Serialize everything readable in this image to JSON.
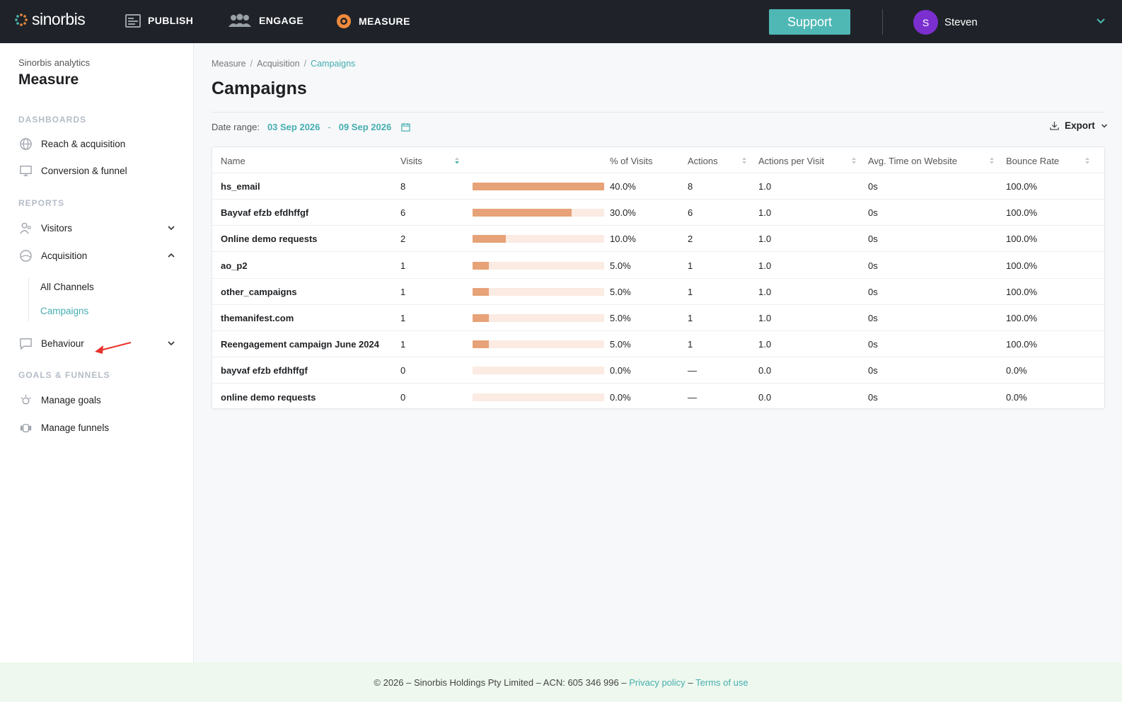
{
  "app": {
    "logo_text": "sinorbis",
    "nav": [
      {
        "label": "PUBLISH",
        "icon": "publish-icon"
      },
      {
        "label": "ENGAGE",
        "icon": "engage-icon"
      },
      {
        "label": "MEASURE",
        "icon": "measure-icon",
        "active": true
      }
    ],
    "support_label": "Support",
    "user": {
      "initial": "S",
      "name": "Steven"
    },
    "accent": "#45aeb0",
    "avatar_color": "#7b2fcf"
  },
  "sidebar": {
    "subtitle": "Sinorbis analytics",
    "title": "Measure",
    "sections": {
      "dashboards": "DASHBOARDS",
      "reports": "REPORTS",
      "goals": "GOALS & FUNNELS"
    },
    "dashboards": [
      {
        "label": "Reach & acquisition",
        "icon": "globe-icon"
      },
      {
        "label": "Conversion & funnel",
        "icon": "monitor-icon"
      }
    ],
    "reports": {
      "visitors": "Visitors",
      "acquisition": "Acquisition",
      "acq_children": [
        "All Channels",
        "Campaigns"
      ],
      "behaviour": "Behaviour"
    },
    "goals": [
      {
        "label": "Manage goals",
        "icon": "goal-icon"
      },
      {
        "label": "Manage funnels",
        "icon": "funnel-icon"
      }
    ]
  },
  "main": {
    "breadcrumb": [
      "Measure",
      "Acquisition",
      "Campaigns"
    ],
    "title": "Campaigns",
    "date_range_label": "Date range:",
    "date_from": "03 Sep 2026",
    "date_sep": "-",
    "date_to": "09 Sep 2026",
    "export_label": "Export"
  },
  "table": {
    "columns": [
      "Name",
      "Visits",
      "% of Visits",
      "Actions",
      "Actions per Visit",
      "Avg. Time on Website",
      "Bounce Rate"
    ],
    "rows": [
      {
        "name": "hs_email",
        "visits": "8",
        "pct": "40.0%",
        "bar": 1.0,
        "actions": "8",
        "apv": "1.0",
        "time": "0s",
        "bounce": "100.0%"
      },
      {
        "name": "Bayvaf efzb efdhffgf",
        "visits": "6",
        "pct": "30.0%",
        "bar": 0.75,
        "actions": "6",
        "apv": "1.0",
        "time": "0s",
        "bounce": "100.0%"
      },
      {
        "name": "Online demo requests",
        "visits": "2",
        "pct": "10.0%",
        "bar": 0.25,
        "actions": "2",
        "apv": "1.0",
        "time": "0s",
        "bounce": "100.0%"
      },
      {
        "name": "ao_p2",
        "visits": "1",
        "pct": "5.0%",
        "bar": 0.125,
        "actions": "1",
        "apv": "1.0",
        "time": "0s",
        "bounce": "100.0%"
      },
      {
        "name": "other_campaigns",
        "visits": "1",
        "pct": "5.0%",
        "bar": 0.125,
        "actions": "1",
        "apv": "1.0",
        "time": "0s",
        "bounce": "100.0%"
      },
      {
        "name": "themanifest.com",
        "visits": "1",
        "pct": "5.0%",
        "bar": 0.125,
        "actions": "1",
        "apv": "1.0",
        "time": "0s",
        "bounce": "100.0%"
      },
      {
        "name": "Reengagement campaign June 2024",
        "visits": "1",
        "pct": "5.0%",
        "bar": 0.125,
        "actions": "1",
        "apv": "1.0",
        "time": "0s",
        "bounce": "100.0%"
      },
      {
        "name": "bayvaf efzb efdhffgf",
        "visits": "0",
        "pct": "0.0%",
        "bar": 0,
        "actions": "—",
        "apv": "0.0",
        "time": "0s",
        "bounce": "0.0%"
      },
      {
        "name": "online demo requests",
        "visits": "0",
        "pct": "0.0%",
        "bar": 0,
        "actions": "—",
        "apv": "0.0",
        "time": "0s",
        "bounce": "0.0%"
      }
    ]
  },
  "footer": {
    "text": "© 2026 – Sinorbis Holdings Pty Limited – ACN: 605 346 996 –",
    "privacy": "Privacy policy",
    "dash": "–",
    "terms": "Terms of use"
  }
}
